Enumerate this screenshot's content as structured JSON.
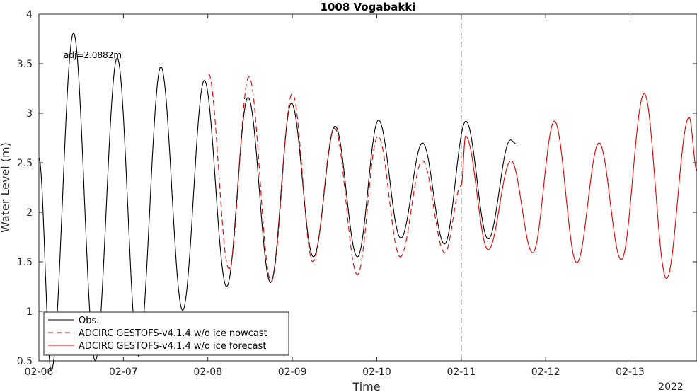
{
  "chart_data": {
    "type": "line",
    "title": "1008 Vogabakki",
    "xlabel": "Time",
    "ylabel": "Water Level (m)",
    "year_label": "2022",
    "annotation": "adj=2.0882m",
    "xlim": [
      "2022-02-06T00:00",
      "2022-02-13T19:00"
    ],
    "ylim": [
      0.5,
      4
    ],
    "x_ticks": [
      "02-06",
      "02-07",
      "02-08",
      "02-09",
      "02-10",
      "02-11",
      "02-12",
      "02-13"
    ],
    "y_ticks": [
      "0.5",
      "1",
      "1.5",
      "2",
      "2.5",
      "3",
      "3.5",
      "4"
    ],
    "vertical_line": "2022-02-11T00:00",
    "legend_location": "bottom-left",
    "series": [
      {
        "name": "Obs.",
        "color": "#000000",
        "style": "solid",
        "points": [
          [
            "2022-02-06T00:00",
            2.55
          ],
          [
            "2022-02-06T03:30",
            0.4
          ],
          [
            "2022-02-06T09:50",
            3.81
          ],
          [
            "2022-02-06T16:00",
            0.5
          ],
          [
            "2022-02-06T22:15",
            3.56
          ],
          [
            "2022-02-07T04:15",
            0.55
          ],
          [
            "2022-02-07T10:40",
            3.47
          ],
          [
            "2022-02-07T16:50",
            1.01
          ],
          [
            "2022-02-07T23:00",
            3.33
          ],
          [
            "2022-02-08T05:20",
            1.25
          ],
          [
            "2022-02-08T11:25",
            3.16
          ],
          [
            "2022-02-08T17:50",
            1.29
          ],
          [
            "2022-02-08T23:45",
            3.1
          ],
          [
            "2022-02-09T06:00",
            1.55
          ],
          [
            "2022-02-09T12:10",
            2.87
          ],
          [
            "2022-02-09T18:30",
            1.55
          ],
          [
            "2022-02-10T00:30",
            2.93
          ],
          [
            "2022-02-10T06:50",
            1.74
          ],
          [
            "2022-02-10T13:00",
            2.7
          ],
          [
            "2022-02-10T19:15",
            1.68
          ],
          [
            "2022-02-11T01:20",
            2.92
          ],
          [
            "2022-02-11T07:40",
            1.73
          ],
          [
            "2022-02-11T14:00",
            2.73
          ],
          [
            "2022-02-11T15:40",
            2.69
          ]
        ]
      },
      {
        "name": "ADCIRC GESTOFS-v4.1.4 w/o ice nowcast",
        "color": "#e00000",
        "style": "dashed",
        "points": [
          [
            "2022-02-08T00:10",
            3.4
          ],
          [
            "2022-02-08T06:00",
            1.43
          ],
          [
            "2022-02-08T11:40",
            3.37
          ],
          [
            "2022-02-08T18:00",
            1.3
          ],
          [
            "2022-02-09T00:00",
            3.2
          ],
          [
            "2022-02-09T05:50",
            1.5
          ],
          [
            "2022-02-09T12:00",
            2.85
          ],
          [
            "2022-02-09T18:30",
            1.37
          ],
          [
            "2022-02-10T00:20",
            2.77
          ],
          [
            "2022-02-10T06:40",
            1.55
          ],
          [
            "2022-02-10T13:00",
            2.52
          ],
          [
            "2022-02-10T19:20",
            1.59
          ],
          [
            "2022-02-11T00:00",
            2.27
          ]
        ]
      },
      {
        "name": "ADCIRC GESTOFS-v4.1.4 w/o ice forecast",
        "color": "#e00000",
        "style": "solid",
        "points": [
          [
            "2022-02-11T00:00",
            2.27
          ],
          [
            "2022-02-11T01:15",
            2.77
          ],
          [
            "2022-02-11T07:40",
            1.62
          ],
          [
            "2022-02-11T14:10",
            2.52
          ],
          [
            "2022-02-11T20:20",
            1.59
          ],
          [
            "2022-02-12T02:30",
            2.92
          ],
          [
            "2022-02-12T08:50",
            1.49
          ],
          [
            "2022-02-12T15:10",
            2.7
          ],
          [
            "2022-02-12T21:30",
            1.52
          ],
          [
            "2022-02-13T04:00",
            3.2
          ],
          [
            "2022-02-13T10:20",
            1.33
          ],
          [
            "2022-02-13T16:45",
            2.96
          ],
          [
            "2022-02-13T19:00",
            2.42
          ]
        ]
      }
    ]
  }
}
